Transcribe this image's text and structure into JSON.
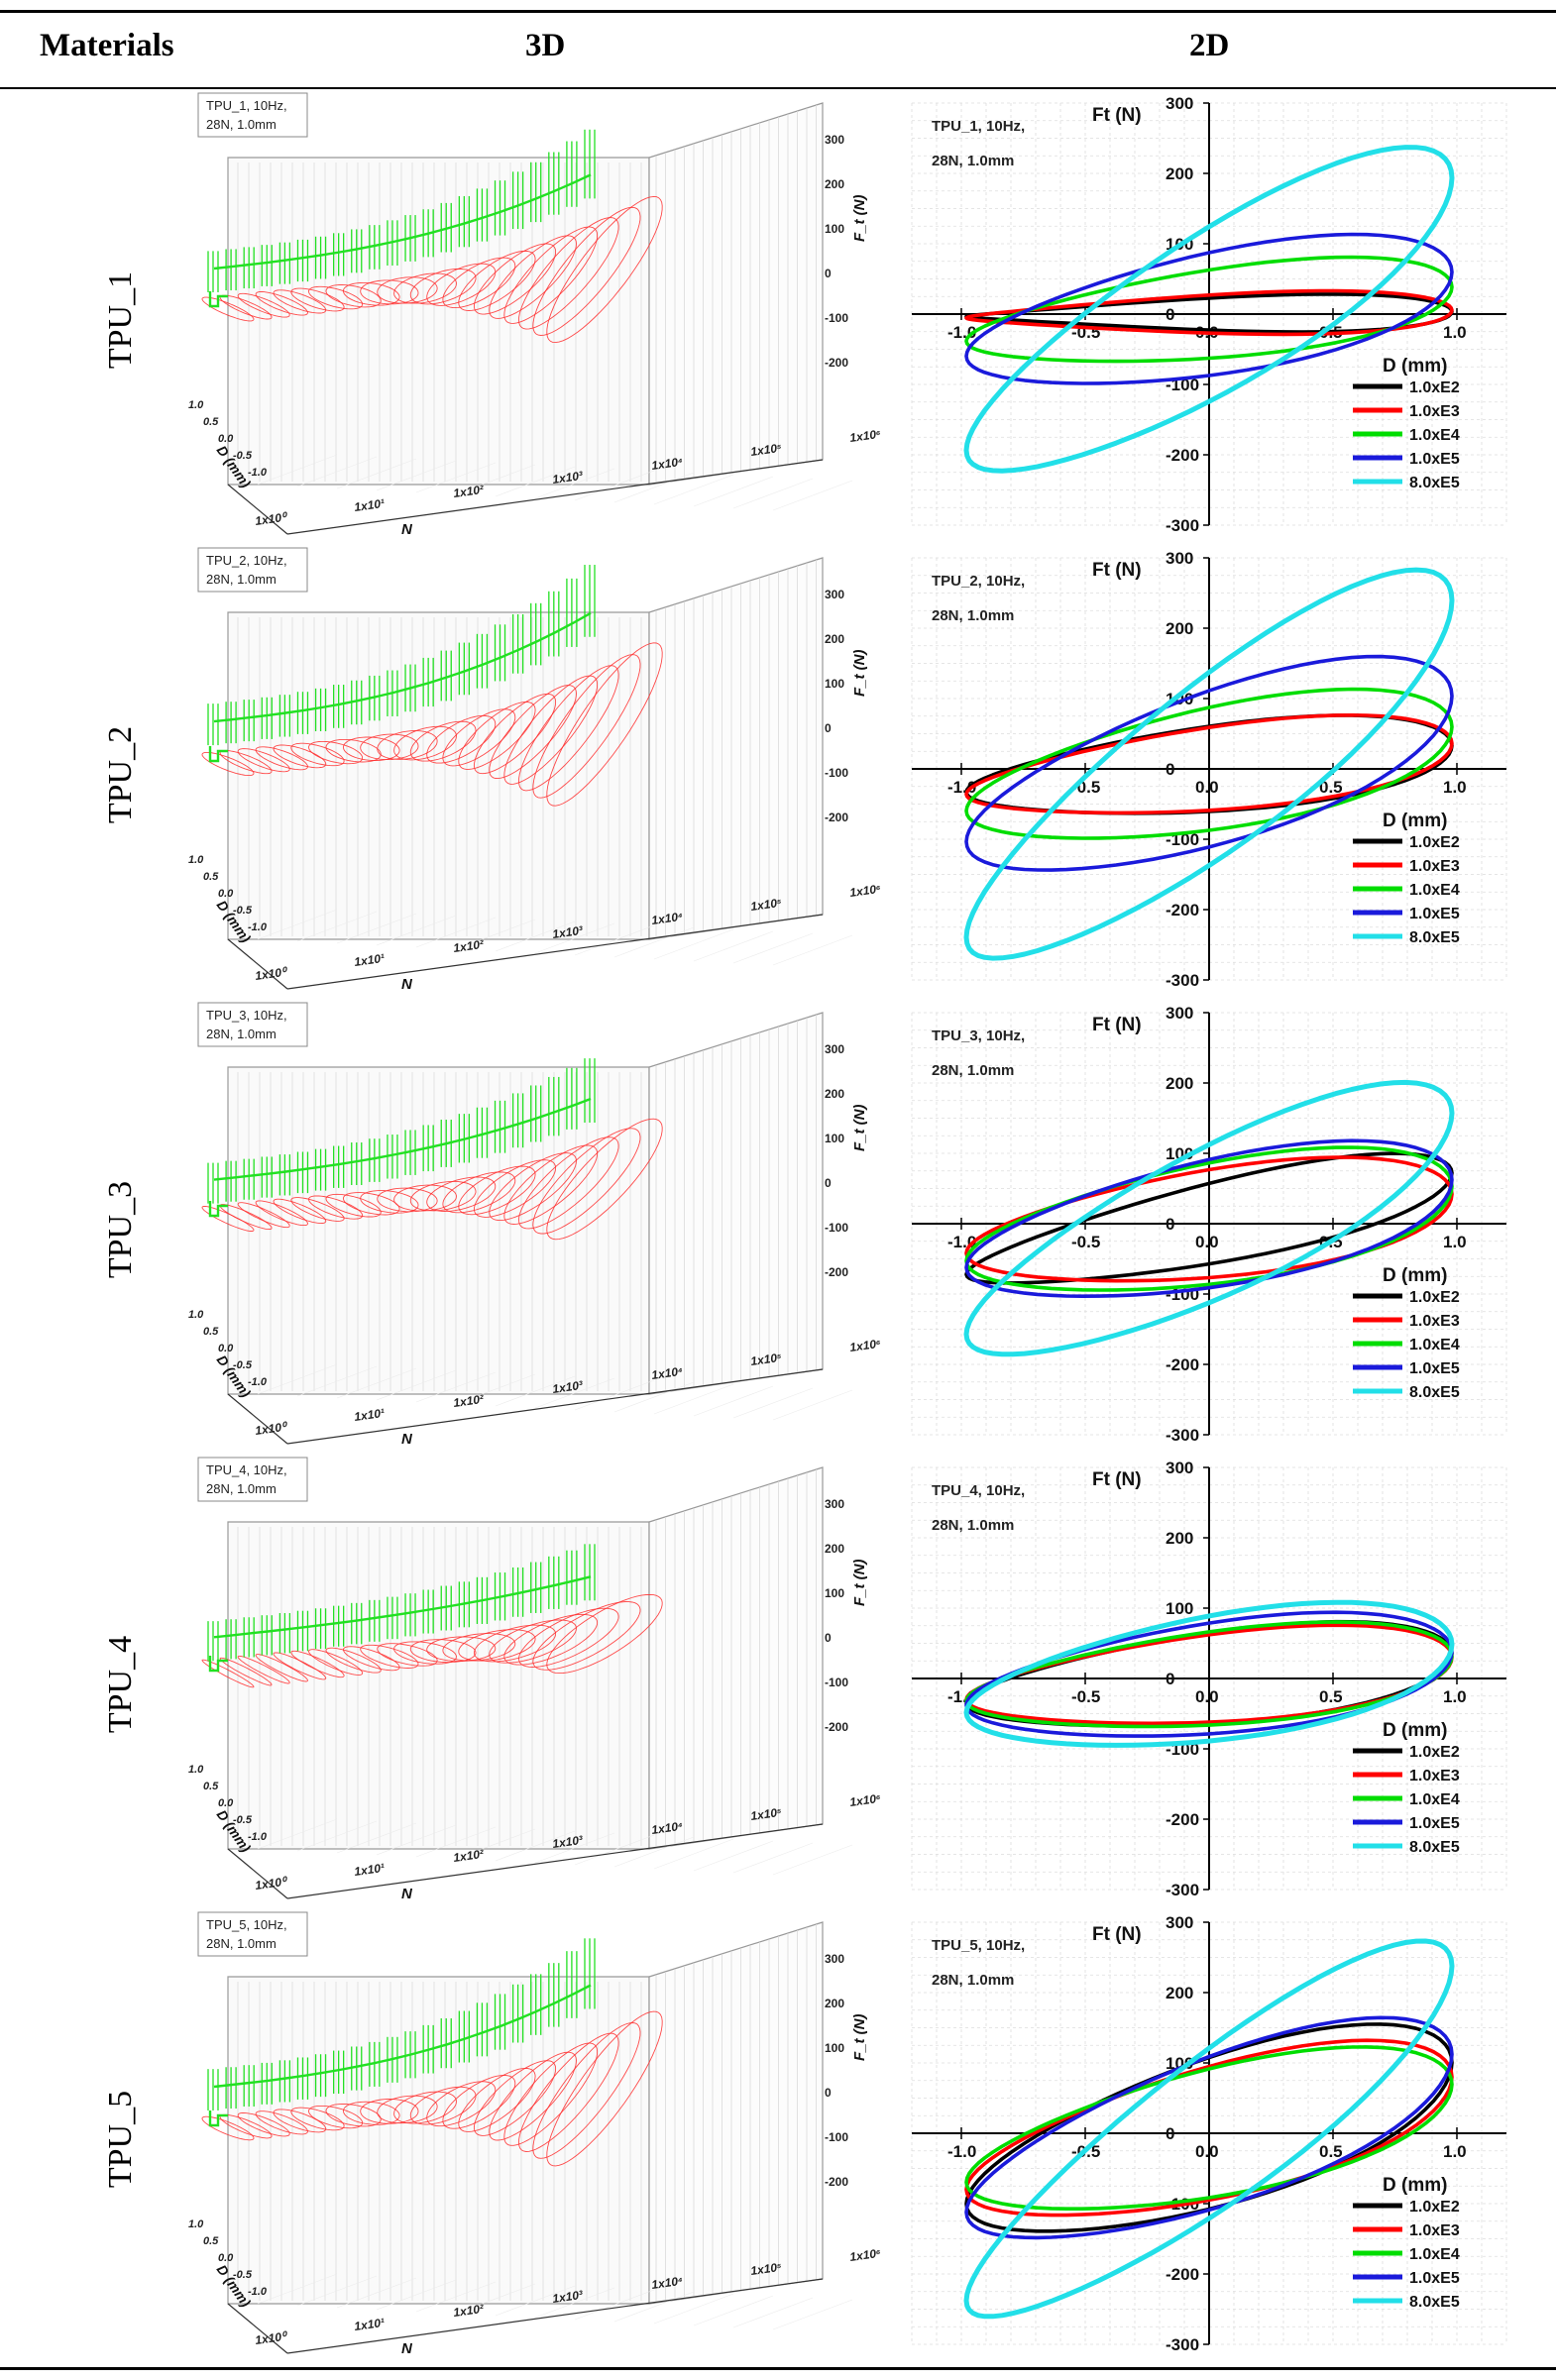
{
  "table": {
    "headers": {
      "materials": "Materials",
      "col3d": "3D",
      "col2d": "2D"
    },
    "rows": [
      {
        "material": "TPU_1",
        "box": [
          "TPU_1, 10Hz,",
          "28N, 1.0mm"
        ],
        "scale3d": 1.0,
        "amps": [
          25,
          30,
          80,
          115,
          250
        ],
        "phase": [
          0.15,
          0.2,
          0.55,
          0.6,
          1.0
        ],
        "cap3d": 0.78
      },
      {
        "material": "TPU_2",
        "box": [
          "TPU_2, 10Hz,",
          "28N, 1.0mm"
        ],
        "scale3d": 1.1,
        "amps": [
          75,
          75,
          115,
          165,
          300
        ],
        "phase": [
          0.5,
          0.55,
          0.6,
          0.75,
          1.05
        ],
        "cap3d": 0.9
      },
      {
        "material": "TPU_3",
        "box": [
          "TPU_3, 10Hz,",
          "28N, 1.0mm"
        ],
        "scale3d": 0.85,
        "amps": [
          100,
          95,
          110,
          120,
          210
        ],
        "phase": [
          0.9,
          0.5,
          0.55,
          0.6,
          0.95
        ],
        "cap3d": 0.7
      },
      {
        "material": "TPU_4",
        "box": [
          "TPU_4, 10Hz,",
          "28N, 1.0mm"
        ],
        "scale3d": 0.6,
        "amps": [
          80,
          75,
          80,
          95,
          110
        ],
        "phase": [
          0.5,
          0.45,
          0.45,
          0.45,
          0.5
        ],
        "cap3d": 0.5
      },
      {
        "material": "TPU_5",
        "box": [
          "TPU_5, 10Hz,",
          "28N, 1.0mm"
        ],
        "scale3d": 1.05,
        "amps": [
          160,
          135,
          125,
          170,
          290
        ],
        "phase": [
          0.75,
          0.7,
          0.65,
          0.8,
          1.1
        ],
        "cap3d": 0.85
      }
    ]
  },
  "axis3d": {
    "zlabel": "F_t (N)",
    "zticks": [
      "300",
      "200",
      "100",
      "0",
      "-100",
      "-200"
    ],
    "nticks": [
      "1x10⁰",
      "1x10¹",
      "1x10²",
      "1x10³",
      "1x10⁴",
      "1x10⁵",
      "1x10⁶"
    ],
    "nlabel": "N",
    "dticks": [
      "1.0",
      "0.5",
      "0.0",
      "-0.5",
      "-1.0"
    ],
    "dlabel": "D (mm)"
  },
  "chart_data": [
    {
      "type": "line",
      "title": "TPU_1, 10Hz, 28N, 1.0mm",
      "xlabel": "D (mm)",
      "ylabel": "F_t (N)",
      "xlim": [
        -1.2,
        1.2
      ],
      "ylim": [
        -300,
        300
      ],
      "xticks": [
        "-1.0",
        "-0.5",
        "0.0",
        "0.5",
        "1.0"
      ],
      "yticks": [
        "300",
        "200",
        "100",
        "0",
        "-100",
        "-200",
        "-300"
      ],
      "series": [
        {
          "name": "1.0xE2",
          "color": "#000000",
          "amplitude": 25
        },
        {
          "name": "1.0xE3",
          "color": "#ff0000",
          "amplitude": 30
        },
        {
          "name": "1.0xE4",
          "color": "#00dd00",
          "amplitude": 80
        },
        {
          "name": "1.0xE5",
          "color": "#1a1adb",
          "amplitude": 115
        },
        {
          "name": "8.0xE5",
          "color": "#22dfe8",
          "amplitude": 250
        }
      ]
    },
    {
      "type": "line",
      "title": "TPU_2, 10Hz, 28N, 1.0mm",
      "xlabel": "D (mm)",
      "ylabel": "F_t (N)",
      "xlim": [
        -1.2,
        1.2
      ],
      "ylim": [
        -300,
        300
      ],
      "xticks": [
        "-1.0",
        "-0.5",
        "0.0",
        "0.5",
        "1.0"
      ],
      "yticks": [
        "300",
        "200",
        "100",
        "0",
        "-100",
        "-200",
        "-300"
      ],
      "series": [
        {
          "name": "1.0xE2",
          "color": "#000000",
          "amplitude": 75
        },
        {
          "name": "1.0xE3",
          "color": "#ff0000",
          "amplitude": 75
        },
        {
          "name": "1.0xE4",
          "color": "#00dd00",
          "amplitude": 115
        },
        {
          "name": "1.0xE5",
          "color": "#1a1adb",
          "amplitude": 165
        },
        {
          "name": "8.0xE5",
          "color": "#22dfe8",
          "amplitude": 300
        }
      ]
    },
    {
      "type": "line",
      "title": "TPU_3, 10Hz, 28N, 1.0mm",
      "xlabel": "D (mm)",
      "ylabel": "F_t (N)",
      "xlim": [
        -1.2,
        1.2
      ],
      "ylim": [
        -300,
        300
      ],
      "xticks": [
        "-1.0",
        "-0.5",
        "0.0",
        "0.5",
        "1.0"
      ],
      "yticks": [
        "300",
        "200",
        "100",
        "0",
        "-100",
        "-200",
        "-300"
      ],
      "series": [
        {
          "name": "1.0xE2",
          "color": "#000000",
          "amplitude": 100
        },
        {
          "name": "1.0xE3",
          "color": "#ff0000",
          "amplitude": 95
        },
        {
          "name": "1.0xE4",
          "color": "#00dd00",
          "amplitude": 110
        },
        {
          "name": "1.0xE5",
          "color": "#1a1adb",
          "amplitude": 120
        },
        {
          "name": "8.0xE5",
          "color": "#22dfe8",
          "amplitude": 210
        }
      ]
    },
    {
      "type": "line",
      "title": "TPU_4, 10Hz, 28N, 1.0mm",
      "xlabel": "D (mm)",
      "ylabel": "F_t (N)",
      "xlim": [
        -1.2,
        1.2
      ],
      "ylim": [
        -300,
        300
      ],
      "xticks": [
        "-1.0",
        "-0.5",
        "0.0",
        "0.5",
        "1.0"
      ],
      "yticks": [
        "300",
        "200",
        "100",
        "0",
        "-100",
        "-200",
        "-300"
      ],
      "series": [
        {
          "name": "1.0xE2",
          "color": "#000000",
          "amplitude": 80
        },
        {
          "name": "1.0xE3",
          "color": "#ff0000",
          "amplitude": 75
        },
        {
          "name": "1.0xE4",
          "color": "#00dd00",
          "amplitude": 80
        },
        {
          "name": "1.0xE5",
          "color": "#1a1adb",
          "amplitude": 95
        },
        {
          "name": "8.0xE5",
          "color": "#22dfe8",
          "amplitude": 110
        }
      ]
    },
    {
      "type": "line",
      "title": "TPU_5, 10Hz, 28N, 1.0mm",
      "xlabel": "D (mm)",
      "ylabel": "F_t (N)",
      "xlim": [
        -1.2,
        1.2
      ],
      "ylim": [
        -300,
        300
      ],
      "xticks": [
        "-1.0",
        "-0.5",
        "0.0",
        "0.5",
        "1.0"
      ],
      "yticks": [
        "300",
        "200",
        "100",
        "0",
        "-100",
        "-200",
        "-300"
      ],
      "series": [
        {
          "name": "1.0xE2",
          "color": "#000000",
          "amplitude": 160
        },
        {
          "name": "1.0xE3",
          "color": "#ff0000",
          "amplitude": 135
        },
        {
          "name": "1.0xE4",
          "color": "#00dd00",
          "amplitude": 125
        },
        {
          "name": "1.0xE5",
          "color": "#1a1adb",
          "amplitude": 170
        },
        {
          "name": "8.0xE5",
          "color": "#22dfe8",
          "amplitude": 290
        }
      ]
    }
  ]
}
